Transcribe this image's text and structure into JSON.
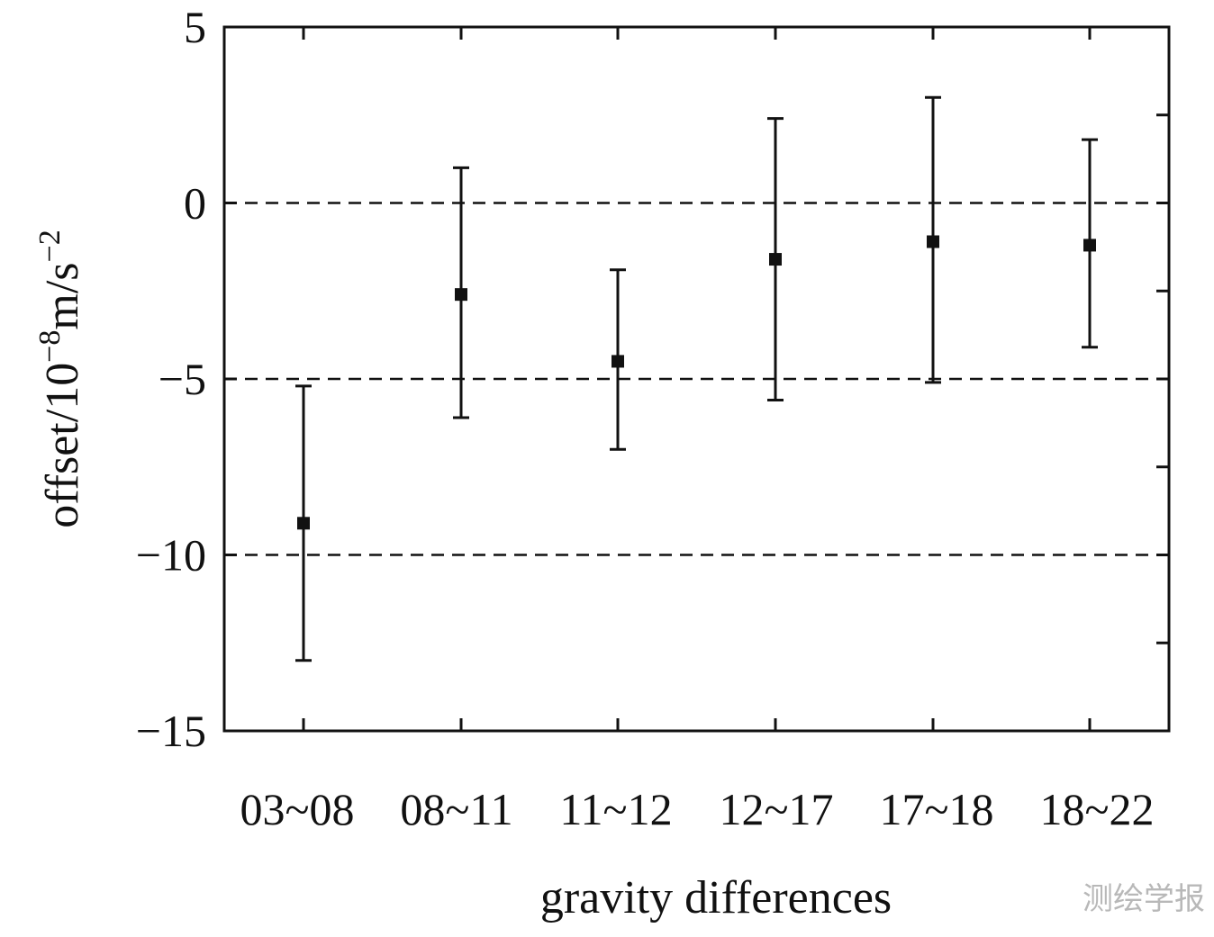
{
  "chart_data": {
    "type": "scatter",
    "categories": [
      "03~08",
      "08~11",
      "11~12",
      "12~17",
      "17~18",
      "18~22"
    ],
    "series": [
      {
        "values": [
          -9.1,
          -2.6,
          -4.5,
          -1.6,
          -1.1,
          -1.2
        ],
        "error_low": [
          -13.0,
          -6.1,
          -7.0,
          -5.6,
          -5.1,
          -4.1
        ],
        "error_high": [
          -5.2,
          1.0,
          -1.9,
          2.4,
          3.0,
          1.8
        ]
      }
    ],
    "ylim": [
      -15,
      5
    ],
    "y_ticks": [
      5,
      0,
      -5,
      -10,
      -15
    ],
    "y_tick_labels": [
      "5",
      "0",
      "−5",
      "−10",
      "−15"
    ],
    "y_minor_ticks": [
      2.5,
      -2.5,
      -7.5,
      -12.5
    ],
    "reference_lines": [
      0,
      -5,
      -10
    ],
    "xlabel": "gravity differences",
    "ylabel": {
      "prefix": "offset/10",
      "exp1": "−8",
      "unit": "m/s",
      "exp2": "−2"
    },
    "grid": false,
    "legend": "none"
  },
  "watermark": "测绘学报",
  "colors": {
    "ink": "#111111",
    "background": "#ffffff",
    "watermark": "#b8b8b8"
  }
}
